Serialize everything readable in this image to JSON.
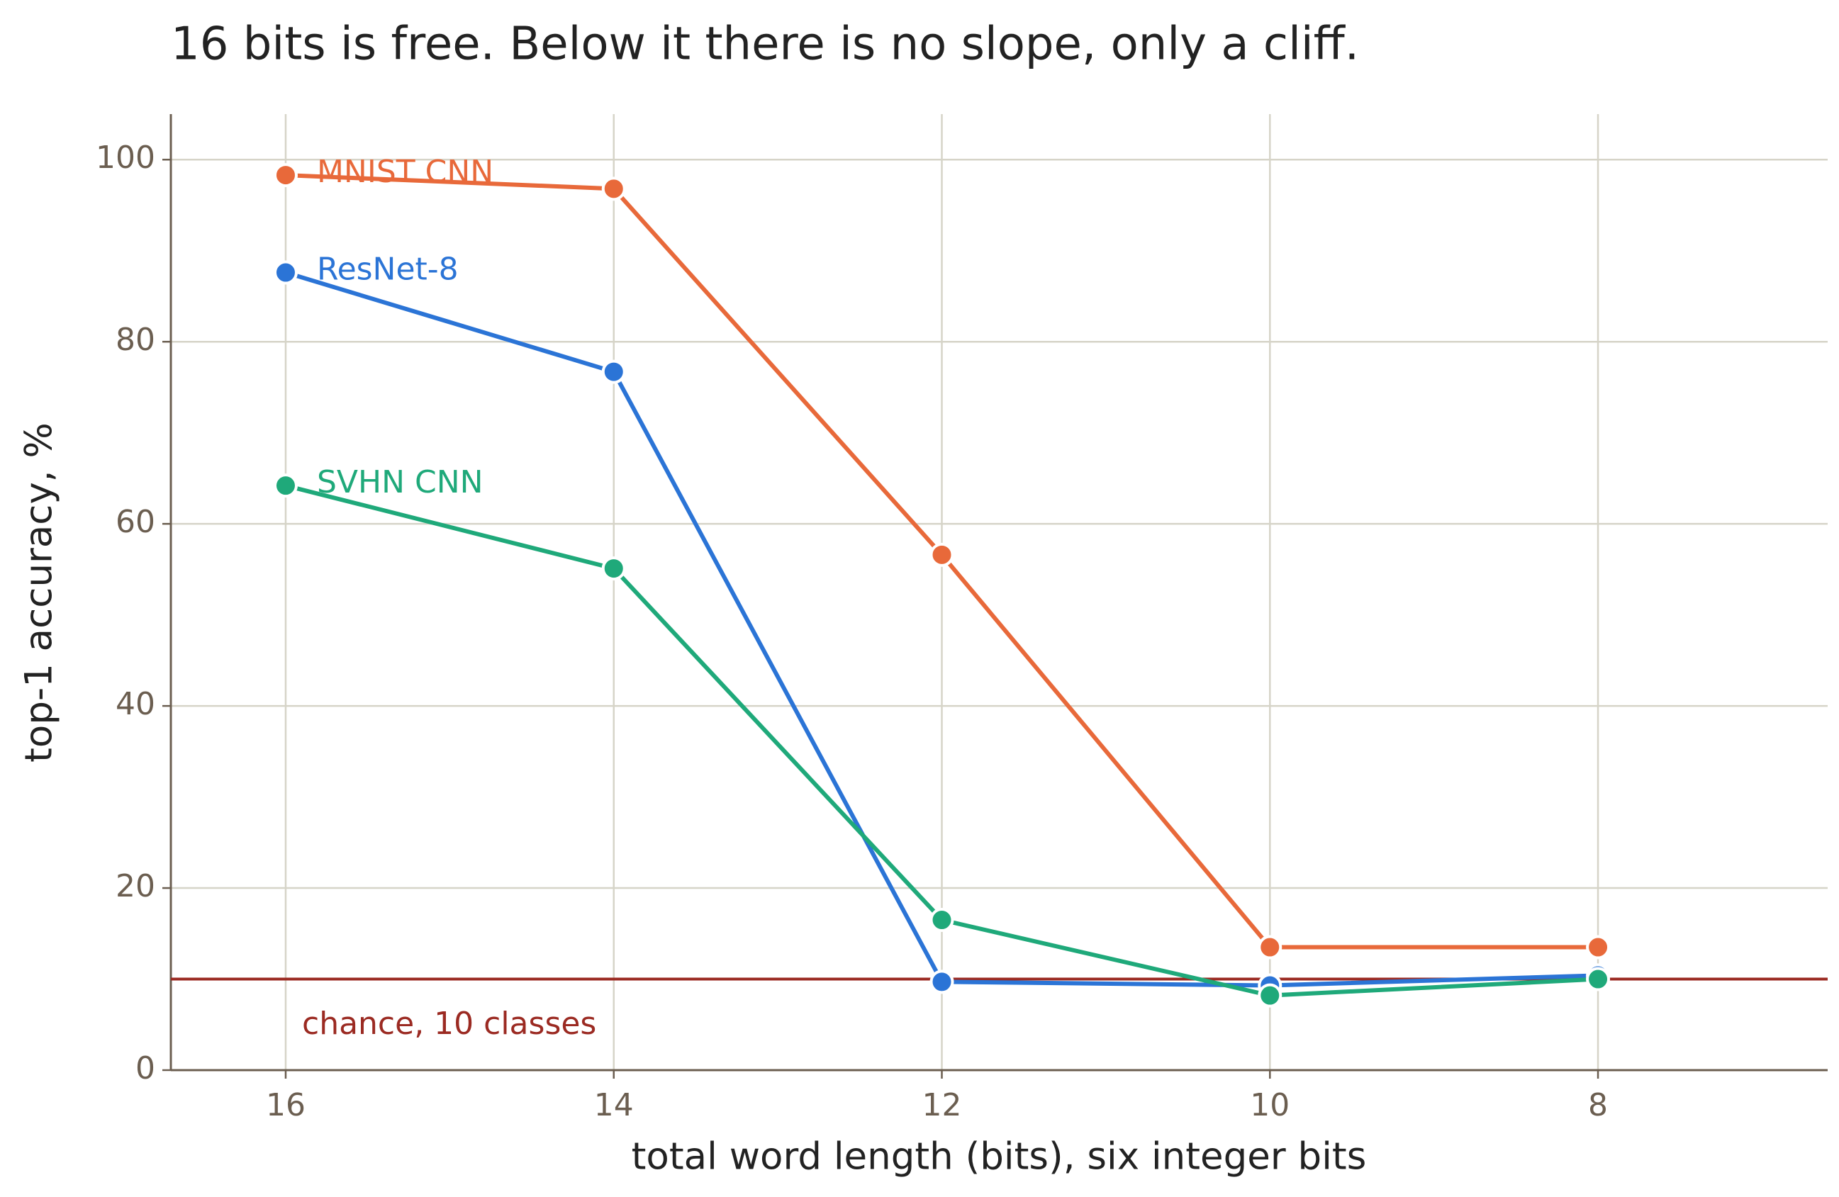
{
  "chart_data": {
    "type": "line",
    "title": "16 bits is free. Below it there is no slope, only a cliff.",
    "x_label": "total word length (bits), six integer bits",
    "y_label": "top-1 accuracy, %",
    "x": [
      16,
      14,
      12,
      10,
      8
    ],
    "series": [
      {
        "name": "MNIST CNN",
        "color": "#e8693a",
        "values": [
          98.3,
          96.8,
          56.6,
          13.5,
          13.5
        ]
      },
      {
        "name": "ResNet-8",
        "color": "#2b74d6",
        "values": [
          87.6,
          76.7,
          9.7,
          9.3,
          10.4
        ]
      },
      {
        "name": "SVHN CNN",
        "color": "#1fa97a",
        "values": [
          64.2,
          55.1,
          16.5,
          8.2,
          10.0
        ]
      }
    ],
    "reference_line": {
      "value": 10,
      "label": "chance, 10 classes",
      "color": "#9b2a22"
    },
    "xlim": [
      16.7,
      6.6
    ],
    "xticks": [
      16,
      14,
      12,
      10,
      8
    ],
    "ylim": [
      0,
      105
    ],
    "yticks": [
      0,
      20,
      40,
      60,
      80,
      100
    ],
    "grid": true
  }
}
